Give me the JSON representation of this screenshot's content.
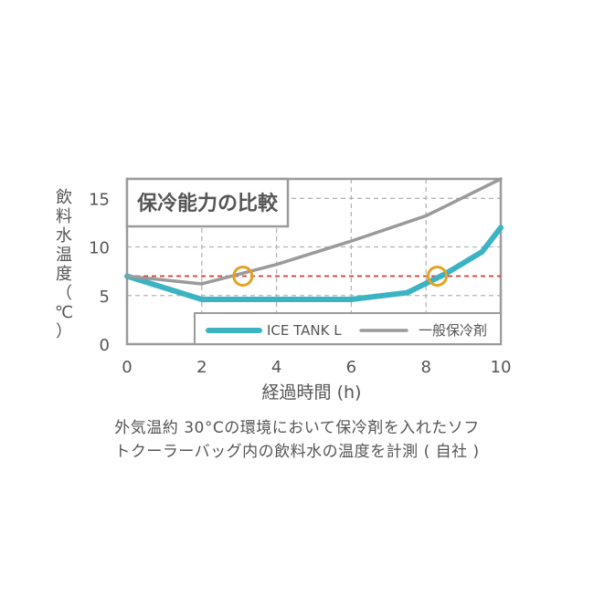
{
  "chart_data": {
    "type": "line",
    "title": "保冷能力の比較",
    "xlabel": "経過時間 (h)",
    "ylabel": [
      "飲",
      "料",
      "水",
      "温",
      "度",
      "（",
      "℃",
      "）"
    ],
    "xlim": [
      0,
      10
    ],
    "ylim": [
      0,
      17
    ],
    "x_ticks": [
      "0",
      "2",
      "4",
      "6",
      "8",
      "10"
    ],
    "y_ticks": [
      "0",
      "5",
      "10",
      "15"
    ],
    "grid": true,
    "legend_position": "bottom-right",
    "series": [
      {
        "name": "ICE TANK L",
        "color": "#3bb3c3",
        "x": [
          0,
          2,
          4,
          6,
          7.5,
          8.5,
          9.5,
          10
        ],
        "y": [
          7,
          4.6,
          4.6,
          4.6,
          5.3,
          7.2,
          9.5,
          12
        ]
      },
      {
        "name": "一般保冷剤",
        "color": "#9a9a9a",
        "x": [
          0,
          2,
          4,
          6,
          8,
          10
        ],
        "y": [
          7,
          6.2,
          8.2,
          10.6,
          13.2,
          17
        ]
      }
    ],
    "reference_line": {
      "y": 7,
      "color": "#d43a3a",
      "style": "dashed"
    },
    "markers": [
      {
        "x": 3.1,
        "y": 7,
        "color": "#e8a021"
      },
      {
        "x": 8.3,
        "y": 7,
        "color": "#e8a021"
      }
    ]
  },
  "caption": {
    "line1": "外気温約 30°Cの環境において保冷剤を入れたソフ",
    "line2": "トクーラーバッグ内の飲料水の温度を計測 ( 自社 )"
  }
}
